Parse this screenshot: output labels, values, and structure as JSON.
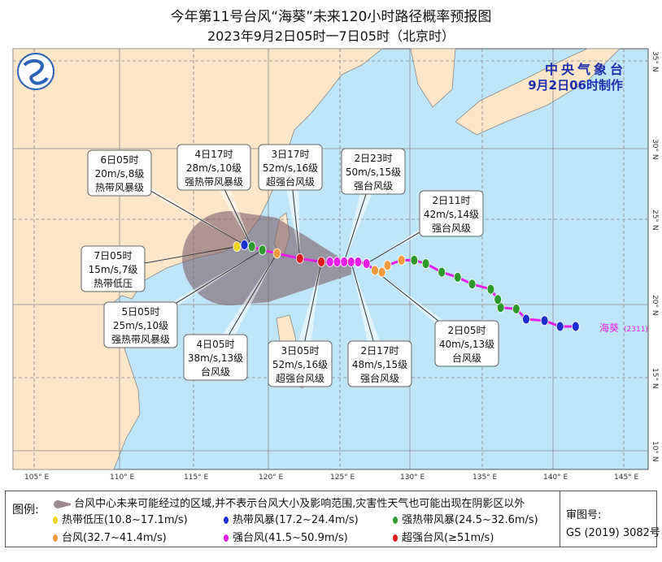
{
  "title": "今年第11号台风“海葵”未来120小时路径概率预报图",
  "subtitle": "2023年9月2日05时一7日05时（北京时）",
  "agency": {
    "name": "中央气象台",
    "issued": "9月2日06时制作"
  },
  "typhoon_label": {
    "name": "海葵",
    "code": "(2311)"
  },
  "axes": {
    "lon_ticks": [
      "105° E",
      "110° E",
      "115° E",
      "120° E",
      "125° E",
      "130° E",
      "135° E",
      "140° E",
      "145° E"
    ],
    "lat_ticks": [
      "35° N",
      "30° N",
      "25° N",
      "20° N",
      "15° N",
      "10° N"
    ]
  },
  "colors": {
    "td": "#f2d21b",
    "ts": "#1c2fd0",
    "sts": "#2e9a2e",
    "ty": "#f39a3c",
    "sty": "#e61ee6",
    "super": "#e01b1b",
    "track": "#e61ee6",
    "cone": "#8a6c78",
    "sea": "#bfe6f8",
    "land": "#fbe6c8"
  },
  "track": [
    {
      "lon": 141.6,
      "lat": 18.5,
      "cat": "ts"
    },
    {
      "lon": 140.5,
      "lat": 18.5,
      "cat": "ts"
    },
    {
      "lon": 139.4,
      "lat": 18.9,
      "cat": "ts"
    },
    {
      "lon": 138.1,
      "lat": 19.0,
      "cat": "ts"
    },
    {
      "lon": 137.4,
      "lat": 19.7,
      "cat": "sts"
    },
    {
      "lon": 136.3,
      "lat": 19.8,
      "cat": "sts"
    },
    {
      "lon": 136.1,
      "lat": 20.3,
      "cat": "sts"
    },
    {
      "lon": 135.6,
      "lat": 20.9,
      "cat": "sts"
    },
    {
      "lon": 134.3,
      "lat": 21.2,
      "cat": "sts"
    },
    {
      "lon": 133.3,
      "lat": 21.6,
      "cat": "sts"
    },
    {
      "lon": 132.2,
      "lat": 21.9,
      "cat": "sts"
    },
    {
      "lon": 131.1,
      "lat": 22.4,
      "cat": "sts"
    },
    {
      "lon": 130.3,
      "lat": 22.6,
      "cat": "sts"
    },
    {
      "lon": 129.4,
      "lat": 22.6,
      "cat": "ty"
    },
    {
      "lon": 128.4,
      "lat": 22.3,
      "cat": "ty"
    },
    {
      "lon": 128.0,
      "lat": 21.9,
      "cat": "ty"
    },
    {
      "lon": 127.5,
      "lat": 22.0,
      "cat": "ty"
    },
    {
      "lon": 126.9,
      "lat": 22.4,
      "cat": "sty"
    },
    {
      "lon": 126.3,
      "lat": 22.5,
      "cat": "sty"
    },
    {
      "lon": 125.8,
      "lat": 22.5,
      "cat": "sty"
    },
    {
      "lon": 125.3,
      "lat": 22.5,
      "cat": "sty"
    },
    {
      "lon": 124.8,
      "lat": 22.5,
      "cat": "sty"
    },
    {
      "lon": 124.3,
      "lat": 22.5,
      "cat": "sty"
    },
    {
      "lon": 123.7,
      "lat": 22.5,
      "cat": "super"
    },
    {
      "lon": 122.2,
      "lat": 22.7,
      "cat": "super"
    },
    {
      "lon": 120.6,
      "lat": 23.0,
      "cat": "ty"
    },
    {
      "lon": 119.6,
      "lat": 23.2,
      "cat": "sts"
    },
    {
      "lon": 118.9,
      "lat": 23.4,
      "cat": "sts"
    },
    {
      "lon": 118.4,
      "lat": 23.5,
      "cat": "ts"
    },
    {
      "lon": 117.9,
      "lat": 23.4,
      "cat": "td"
    }
  ],
  "callouts": [
    {
      "time": "6日05时",
      "wind": "20m/s,8级",
      "level": "热带风暴级",
      "target": 28
    },
    {
      "time": "4日17时",
      "wind": "28m/s,10级",
      "level": "强热带风暴级",
      "target": 27
    },
    {
      "time": "3日17时",
      "wind": "52m/s,16级",
      "level": "超强台风级",
      "target": 24
    },
    {
      "time": "2日23时",
      "wind": "50m/s,15级",
      "level": "强台风级",
      "target": 20
    },
    {
      "time": "2日11时",
      "wind": "42m/s,14级",
      "level": "强台风级",
      "target": 17
    },
    {
      "time": "7日05时",
      "wind": "15m/s,7级",
      "level": "热带低压",
      "target": 29
    },
    {
      "time": "5日05时",
      "wind": "25m/s,10级",
      "level": "强热带风暴级",
      "target": 26
    },
    {
      "time": "4日05时",
      "wind": "38m/s,13级",
      "level": "台风级",
      "target": 25
    },
    {
      "time": "3日05时",
      "wind": "52m/s,16级",
      "level": "超强台风级",
      "target": 23
    },
    {
      "time": "2日17时",
      "wind": "48m/s,15级",
      "level": "强台风级",
      "target": 19
    },
    {
      "time": "2日05时",
      "wind": "40m/s,13级",
      "level": "台风级",
      "target": 16
    }
  ],
  "legend": {
    "label": "图例:",
    "cone_text": "台风中心未来可能经过的区域,并不表示台风大小及影响范围,灾害性天气也可能出现在阴影区以外",
    "items": [
      {
        "label": "热带低压(10.8~17.1m/s)",
        "cat": "td"
      },
      {
        "label": "热带风暴(17.2~24.4m/s)",
        "cat": "ts"
      },
      {
        "label": "强热带风暴(24.5~32.6m/s)",
        "cat": "sts"
      },
      {
        "label": "台风(32.7~41.4m/s)",
        "cat": "ty"
      },
      {
        "label": "强台风(41.5~50.9m/s)",
        "cat": "sty"
      },
      {
        "label": "超强台风(≥51m/s)",
        "cat": "super"
      }
    ],
    "review_label": "审图号:",
    "review_number": "GS (2019) 3082号"
  }
}
